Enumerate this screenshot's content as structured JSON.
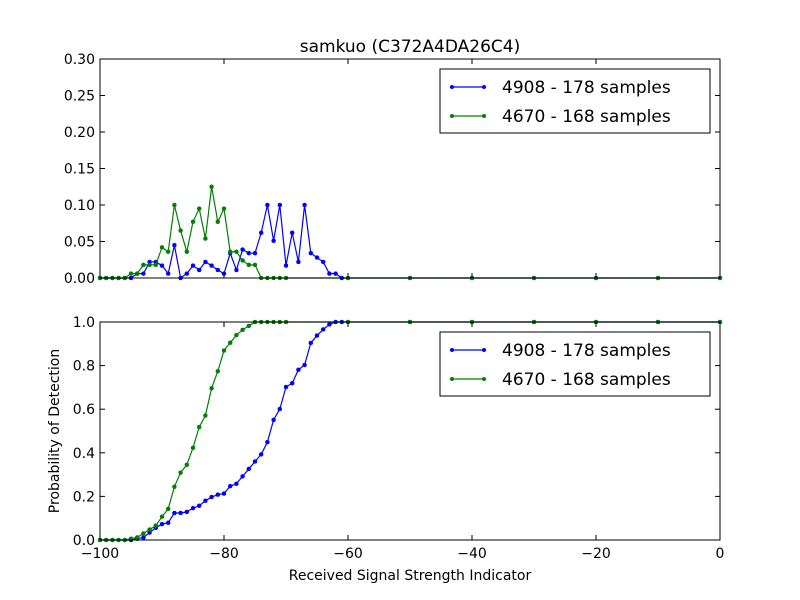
{
  "chart_data": [
    {
      "type": "line",
      "title": "samkuo (C372A4DA26C4)",
      "xlabel": "",
      "ylabel": "",
      "xlim": [
        -100,
        0
      ],
      "ylim": [
        0,
        0.3
      ],
      "xticks": [],
      "yticks": [
        "0.00",
        "0.05",
        "0.10",
        "0.15",
        "0.20",
        "0.25",
        "0.30"
      ],
      "ytick_values": [
        0,
        0.05,
        0.1,
        0.15,
        0.2,
        0.25,
        0.3
      ],
      "grid": false,
      "legend_position": "top-right",
      "series": [
        {
          "name": "4908 - 178 samples",
          "color": "#0000ff",
          "x": [
            -100,
            -99,
            -98,
            -97,
            -96,
            -95,
            -94,
            -93,
            -92,
            -91,
            -90,
            -89,
            -88,
            -87,
            -86,
            -85,
            -84,
            -83,
            -82,
            -81,
            -80,
            -79,
            -78,
            -77,
            -76,
            -75,
            -74,
            -73,
            -72,
            -71,
            -70,
            -69,
            -68,
            -67,
            -66,
            -65,
            -64,
            -63,
            -62,
            -61,
            -60,
            -50,
            -40,
            -30,
            -20,
            -10,
            0
          ],
          "y": [
            0,
            0,
            0,
            0,
            0,
            0,
            0.006,
            0.006,
            0.022,
            0.022,
            0.017,
            0.006,
            0.045,
            0,
            0.006,
            0.017,
            0.011,
            0.022,
            0.017,
            0.011,
            0.006,
            0.034,
            0.011,
            0.039,
            0.034,
            0.034,
            0.062,
            0.1,
            0.051,
            0.1,
            0.017,
            0.062,
            0.022,
            0.1,
            0.034,
            0.028,
            0.022,
            0.006,
            0.006,
            0,
            0,
            0,
            0,
            0,
            0,
            0,
            0
          ]
        },
        {
          "name": "4670 - 168 samples",
          "color": "#008000",
          "x": [
            -100,
            -99,
            -98,
            -97,
            -96,
            -95,
            -94,
            -93,
            -92,
            -91,
            -90,
            -89,
            -88,
            -87,
            -86,
            -85,
            -84,
            -83,
            -82,
            -81,
            -80,
            -79,
            -78,
            -77,
            -76,
            -75,
            -74,
            -73,
            -72,
            -71,
            -70,
            -60,
            -50,
            -40,
            -30,
            -20,
            -10,
            0
          ],
          "y": [
            0,
            0,
            0,
            0,
            0,
            0.006,
            0.006,
            0.018,
            0.018,
            0.018,
            0.042,
            0.036,
            0.1,
            0.065,
            0.036,
            0.077,
            0.095,
            0.054,
            0.125,
            0.077,
            0.095,
            0.036,
            0.036,
            0.024,
            0.018,
            0.018,
            0,
            0,
            0,
            0,
            0,
            0,
            0,
            0,
            0,
            0,
            0,
            0
          ]
        }
      ]
    },
    {
      "type": "line",
      "title": "",
      "xlabel": "Received Signal Strength Indicator",
      "ylabel": "Probability of Detection",
      "xlim": [
        -100,
        0
      ],
      "ylim": [
        0,
        1.0
      ],
      "xticks": [
        "−100",
        "−80",
        "−60",
        "−40",
        "−20",
        "0"
      ],
      "xtick_values": [
        -100,
        -80,
        -60,
        -40,
        -20,
        0
      ],
      "yticks": [
        "0.0",
        "0.2",
        "0.4",
        "0.6",
        "0.8",
        "1.0"
      ],
      "ytick_values": [
        0,
        0.2,
        0.4,
        0.6,
        0.8,
        1.0
      ],
      "grid": false,
      "legend_position": "top-right",
      "series": [
        {
          "name": "4908 - 178 samples",
          "color": "#0000ff",
          "x": [
            -100,
            -99,
            -98,
            -97,
            -96,
            -95,
            -94,
            -93,
            -92,
            -91,
            -90,
            -89,
            -88,
            -87,
            -86,
            -85,
            -84,
            -83,
            -82,
            -81,
            -80,
            -79,
            -78,
            -77,
            -76,
            -75,
            -74,
            -73,
            -72,
            -71,
            -70,
            -69,
            -68,
            -67,
            -66,
            -65,
            -64,
            -63,
            -62,
            -61,
            -60,
            -50,
            -40,
            -30,
            -20,
            -10,
            0
          ],
          "y": [
            0,
            0,
            0,
            0,
            0,
            0,
            0.006,
            0.011,
            0.034,
            0.056,
            0.073,
            0.079,
            0.124,
            0.124,
            0.129,
            0.146,
            0.157,
            0.18,
            0.197,
            0.208,
            0.213,
            0.247,
            0.258,
            0.292,
            0.326,
            0.36,
            0.393,
            0.449,
            0.551,
            0.601,
            0.702,
            0.719,
            0.781,
            0.803,
            0.904,
            0.938,
            0.966,
            0.989,
            1,
            1,
            1,
            1,
            1,
            1,
            1,
            1,
            1
          ]
        },
        {
          "name": "4670 - 168 samples",
          "color": "#008000",
          "x": [
            -100,
            -99,
            -98,
            -97,
            -96,
            -95,
            -94,
            -93,
            -92,
            -91,
            -90,
            -89,
            -88,
            -87,
            -86,
            -85,
            -84,
            -83,
            -82,
            -81,
            -80,
            -79,
            -78,
            -77,
            -76,
            -75,
            -74,
            -73,
            -72,
            -71,
            -70,
            -60,
            -50,
            -40,
            -30,
            -20,
            -10,
            0
          ],
          "y": [
            0,
            0,
            0,
            0,
            0,
            0.006,
            0.012,
            0.03,
            0.048,
            0.066,
            0.107,
            0.143,
            0.244,
            0.309,
            0.345,
            0.423,
            0.518,
            0.571,
            0.696,
            0.774,
            0.869,
            0.905,
            0.94,
            0.964,
            0.982,
            1,
            1,
            1,
            1,
            1,
            1,
            1,
            1,
            1,
            1,
            1,
            1,
            1
          ]
        }
      ]
    }
  ]
}
